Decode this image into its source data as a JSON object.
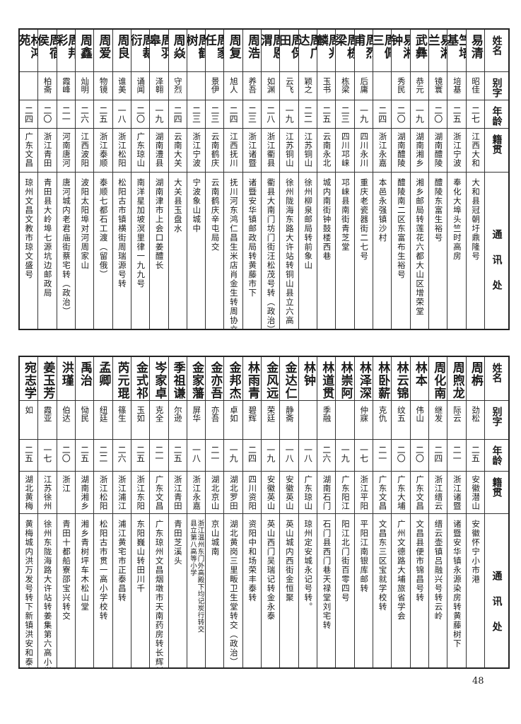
{
  "headers": {
    "name": "姓名",
    "alias": "别字",
    "age": "年龄",
    "origin": "籍贯",
    "address": "通讯处"
  },
  "top_table": [
    {
      "name": "易清",
      "alias": "昭佳",
      "age": "二七",
      "origin": "江西大和",
      "address": [
        "大和县冠朝圩鼎隆号"
      ]
    },
    {
      "name": "竺培基",
      "alias": "培基",
      "age": "二五",
      "origin": "浙江宁波",
      "address": [
        "奉化大埠头竺时高房"
      ]
    },
    {
      "name": "易湘兰",
      "alias": "镜寰",
      "age": "二〇",
      "origin": "湖南醴陵",
      "address": [
        "醴陵东富生裕号"
      ]
    },
    {
      "name": "武彝",
      "alias": "恭元",
      "age": "一九",
      "origin": "湖南湘乡",
      "address": [
        "湘乡邮局转莲花六都大山区增荣堂"
      ]
    },
    {
      "name": "易湘钟",
      "alias": "秀民",
      "age": "二〇",
      "origin": "湖南醴陵",
      "address": [
        "醴陵南二区东富布生裕号"
      ]
    },
    {
      "name": "周佩三",
      "alias": "",
      "age": "二四",
      "origin": "浙江永嘉",
      "address": [
        "本邑永强镇沙村"
      ]
    },
    {
      "name": "周烈甫",
      "alias": "后庸",
      "age": "一九",
      "origin": "四川永川",
      "address": [
        "重庆老瓷器街二七号"
      ]
    },
    {
      "name": "周栋梁",
      "alias": "栋梁",
      "age": "二三",
      "origin": "四川邛崃",
      "address": [
        "邛崃县南街青芝堂"
      ]
    },
    {
      "name": "周兆麟",
      "alias": "玉书",
      "age": "二五",
      "origin": "云南永北",
      "address": [
        "城内南街钟鼓楼西巷"
      ]
    },
    {
      "name": "周广达",
      "alias": "颖之",
      "age": "二二",
      "origin": "江苏铜山",
      "address": [
        "徐州柳泉邮局转前象山"
      ]
    },
    {
      "name": "周保田",
      "alias": "云飞",
      "age": "一九",
      "origin": "江苏铜山",
      "address": [
        "徐州陇海东路大许站转铜山县立六高"
      ]
    },
    {
      "name": "周恩渭",
      "alias": "如渊",
      "age": "二八",
      "origin": "浙江衢县",
      "address": [
        "衢县大南门坊门街汪松茂号转（政治）"
      ]
    },
    {
      "name": "周浩",
      "alias": "养吾",
      "age": "二三",
      "origin": "浙江诸暨",
      "address": [
        "诸暨安华镇邮政局转黄藤市下"
      ]
    },
    {
      "name": "周复",
      "alias": "旭人",
      "age": "二四",
      "origin": "江西抚川",
      "address": [
        "抚川河东鸿仁昌生米店肖金生转周协立君转"
      ]
    },
    {
      "name": "周家任",
      "alias": "景伊",
      "age": "二三",
      "origin": "云南鹤庆",
      "address": [
        "云南鹤庆辛屯局交"
      ]
    },
    {
      "name": "周鹤树",
      "alias": "",
      "age": "二三",
      "origin": "浙江宁波",
      "address": [
        "宁波象山城中"
      ]
    },
    {
      "name": "周焱",
      "alias": "守烈",
      "age": "二四",
      "origin": "云南大关",
      "address": [
        "大关县玉盘水"
      ]
    },
    {
      "name": "周羽皋",
      "alias": "泽翱",
      "age": "一九",
      "origin": "湖南澧县",
      "address": [
        "湖南津市上会口姜醴长"
      ]
    },
    {
      "name": "周裁衍",
      "alias": "诵闻",
      "age": "二〇",
      "origin": "广东琼山",
      "address": [
        "南洋星加坡溟里律一九九号"
      ]
    },
    {
      "name": "周良",
      "alias": "谁美",
      "age": "一八",
      "origin": "浙江松阳",
      "address": [
        "松阳古市镇横街周瑞源号转"
      ]
    },
    {
      "name": "周爱",
      "alias": "物镜",
      "age": "二五",
      "origin": "浙江泰顺",
      "address": [
        "泰顺七都石工渡（留俄）"
      ]
    },
    {
      "name": "周鑫",
      "alias": "灿明",
      "age": "二六",
      "origin": "江西波阳",
      "address": [
        "波阳太阳埠对河周家山"
      ]
    },
    {
      "name": "周邦彩",
      "alias": "霞峰",
      "age": "二一",
      "origin": "河南唐河",
      "address": [
        "唐河城内老君庙街蔡宅转（政治）"
      ]
    },
    {
      "name": "周宿侯",
      "alias": "柏斋",
      "age": "二〇",
      "origin": "浙江青田",
      "address": [
        "青田县大岭埠七源坑边邮政局"
      ]
    },
    {
      "name": "林鸿苑",
      "alias": "",
      "age": "二四",
      "origin": "广东文昌",
      "address": [
        "琼州文昌文教市琼文盛号"
      ]
    }
  ],
  "bottom_table": [
    {
      "name": "周栴",
      "alias": "劲松",
      "age": "二五",
      "origin": "安徽潜山",
      "address": [
        "安徽怀宁小市港"
      ]
    },
    {
      "name": "周煦龙",
      "alias": "际云",
      "age": "二一",
      "origin": "浙江诸暨",
      "address": [
        "诸暨安华镇永源染房转黄藤树下"
      ]
    },
    {
      "name": "周化南",
      "alias": "继发",
      "age": "二四",
      "origin": "浙江缙云",
      "address": [
        "缙云壶镇吕融兴号转云岭"
      ]
    },
    {
      "name": "林本",
      "alias": "伟山",
      "age": "二〇",
      "origin": "广东文昌",
      "address": [
        "文昌县便市锦昌号转"
      ]
    },
    {
      "name": "林云锦",
      "alias": "纹五",
      "age": "二〇",
      "origin": "广东大埔",
      "address": [
        "广州文德路大埔旅省学会"
      ]
    },
    {
      "name": "林卧薪",
      "alias": "克仇",
      "age": "二一",
      "origin": "广东文昌",
      "address": [
        "文昌东三区宝就学校转"
      ]
    },
    {
      "name": "林泽深",
      "alias": "仲寐",
      "age": "一七",
      "origin": "浙江平阳",
      "address": [
        "平阳江南银库邮转"
      ]
    },
    {
      "name": "林崇阿",
      "alias": "",
      "age": "一九",
      "origin": "广东阳江",
      "address": [
        "阳江北门街百零四号"
      ]
    },
    {
      "name": "林道贯",
      "alias": "季融",
      "age": "二六",
      "origin": "湖南石门",
      "address": [
        "石门县西门巷天禄堂刘宅转"
      ]
    },
    {
      "name": "林钟",
      "alias": "",
      "age": "一八",
      "origin": "广东琼山",
      "address": [
        "琼州定安城永记号转。"
      ]
    },
    {
      "name": "金达仁",
      "alias": "静斋",
      "age": "一八",
      "origin": "安徽英山",
      "address": [
        "英山城内西街金恒聚"
      ]
    },
    {
      "name": "金风远",
      "alias": "荣廷",
      "age": "一九",
      "origin": "安徽英山",
      "address": [
        "英山西门吴瑞记转金永泰"
      ]
    },
    {
      "name": "林雨青",
      "alias": "碧辉",
      "age": "二四",
      "origin": "四川资阳",
      "address": [
        "资阳中和场荣丰泰转"
      ]
    },
    {
      "name": "金邦杰",
      "alias": "卓如",
      "age": "一九",
      "origin": "湖北罗田",
      "address": [
        "湖北黄岗三里畈卫生堂转交（政治）"
      ]
    },
    {
      "name": "金亦吾",
      "alias": "亦吾",
      "age": "二一",
      "origin": "湖北京山",
      "address": [
        "京山城南"
      ]
    },
    {
      "name": "金家藩",
      "alias": "屏华",
      "age": "一八",
      "origin": "浙江永嘉",
      "address": [
        "浙江温州东门外高殿下均记炭行转交",
        "县立第八高等小学"
      ]
    },
    {
      "name": "季祖谦",
      "alias": "尔逊",
      "age": "二五",
      "origin": "浙江青田",
      "address": [
        "青田芝溪头"
      ]
    },
    {
      "name": "岑家卓",
      "alias": "克全",
      "age": "二一",
      "origin": "广东文昌",
      "address": [
        "广东琼州文昌烟墩市天南药房转长辉村"
      ]
    },
    {
      "name": "金式祁",
      "alias": "玉如",
      "age": "二五",
      "origin": "浙江东阳",
      "address": [
        "东阳巍山转田川千"
      ]
    },
    {
      "name": "芮元琨",
      "alias": "篠生",
      "age": "二六",
      "origin": "浙江浦江",
      "address": [
        "浦江黄宅市正泰昌转"
      ]
    },
    {
      "name": "孟卿",
      "alias": "纽廷",
      "age": "二二",
      "origin": "浙江松阳",
      "address": [
        "松阳古市贯一高小学校转"
      ]
    },
    {
      "name": "禹治",
      "alias": "恸民",
      "age": "二五",
      "origin": "湖南湘乡",
      "address": [
        "湘乡青树坪车木松山堂"
      ]
    },
    {
      "name": "洪瑾",
      "alias": "伯达",
      "age": "二〇",
      "origin": "浙江",
      "address": [
        "青田十都船寮邵宝兴转交"
      ]
    },
    {
      "name": "姜玉芳",
      "alias": "霞亚",
      "age": "一七",
      "origin": "江苏徐州",
      "address": [
        "徐州东陇海路大许站转姜集第六高小学校交"
      ]
    },
    {
      "name": "宛志学",
      "alias": "如",
      "age": "二五",
      "origin": "湖北黄梅",
      "address": [
        "黄梅城内洪万发号转下新镇洪安和泰宝号交"
      ]
    }
  ],
  "page_number": "48"
}
